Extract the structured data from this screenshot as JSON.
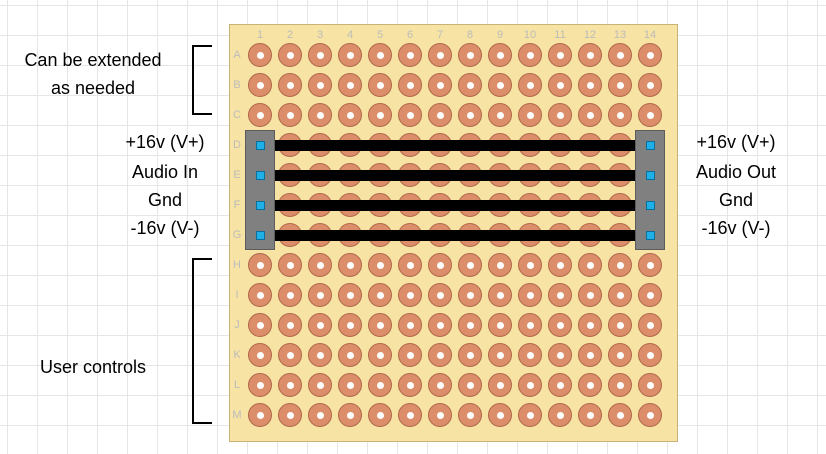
{
  "board": {
    "columns": [
      "1",
      "2",
      "3",
      "4",
      "5",
      "6",
      "7",
      "8",
      "9",
      "10",
      "11",
      "12",
      "13",
      "14"
    ],
    "rows": [
      "A",
      "B",
      "C",
      "D",
      "E",
      "F",
      "G",
      "H",
      "I",
      "J",
      "K",
      "L",
      "M"
    ],
    "pad_color": "#dc8e6b",
    "board_color": "#f7e3a3",
    "bus_rows": [
      "D",
      "E",
      "F",
      "G"
    ]
  },
  "left_notes": {
    "top": "Can be extended as needed",
    "top_line1": "Can be extended",
    "top_line2": "as needed",
    "bottom": "User controls"
  },
  "left_connector": {
    "pins": [
      "+16v (V+)",
      "Audio In",
      "Gnd",
      "-16v (V-)"
    ]
  },
  "right_connector": {
    "pins": [
      "+16v (V+)",
      "Audio Out",
      "Gnd",
      "-16v (V-)"
    ]
  },
  "colors": {
    "trace": "#000000",
    "header": "#808080",
    "pin": "#1fb0e8"
  }
}
